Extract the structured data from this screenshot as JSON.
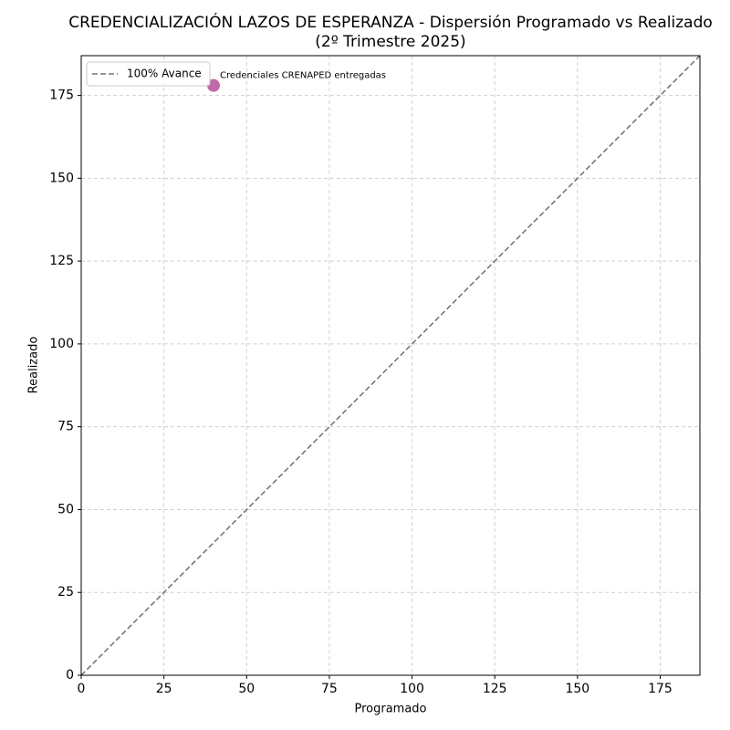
{
  "chart_data": {
    "type": "scatter",
    "title": "CREDENCIALIZACIÓN LAZOS DE ESPERANZA - Dispersión Programado vs Realizado",
    "subtitle": "(2º Trimestre 2025)",
    "xlabel": "Programado",
    "ylabel": "Realizado",
    "xlim": [
      0,
      187
    ],
    "ylim": [
      0,
      187
    ],
    "xticks": [
      0,
      25,
      50,
      75,
      100,
      125,
      150,
      175
    ],
    "yticks": [
      0,
      25,
      50,
      75,
      100,
      125,
      150,
      175
    ],
    "grid": true,
    "legend": "upper left",
    "series": [
      {
        "name": "100% Avance",
        "type": "line",
        "dashed": true,
        "color": "#777777",
        "x": [
          0,
          187
        ],
        "values": [
          0,
          187
        ]
      },
      {
        "type": "scatter",
        "color": "#b5509a",
        "x": [
          40
        ],
        "values": [
          178
        ],
        "labels": [
          "Credenciales CRENAPED entregadas"
        ]
      }
    ]
  }
}
